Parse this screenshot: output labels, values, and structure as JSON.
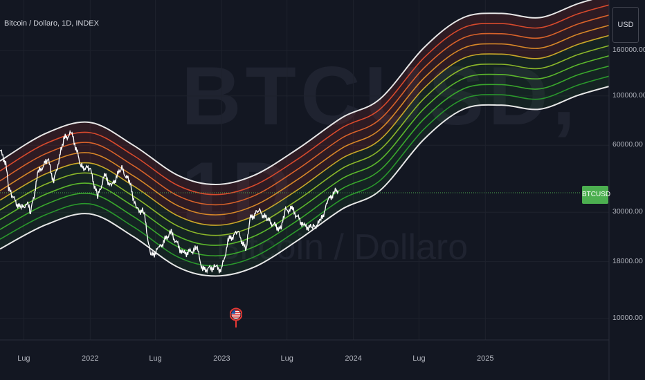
{
  "header": {
    "symbol_title": "Bitcoin / Dollaro, 1D, INDEX"
  },
  "watermark": {
    "ticker": "BTCUSD, 1D",
    "name": "Bitcoin / Dollaro"
  },
  "currency_button": {
    "label": "USD"
  },
  "price_tag": {
    "label": "BTCUSD",
    "color": "#4caf50"
  },
  "event_marker": {
    "icon": "us-flag-icon"
  },
  "colors": {
    "background": "#131722",
    "band_colors": [
      "#e8e8e8",
      "#d84a2c",
      "#d8622a",
      "#d88828",
      "#c8a828",
      "#8cb82a",
      "#5cb82c",
      "#3aa82c",
      "#2a982c",
      "#e8e8e8"
    ],
    "price_line": "#ffffff"
  },
  "chart_data": {
    "type": "line",
    "y_scale": "log",
    "ylim": [
      8000,
      270000
    ],
    "y_ticks": [
      {
        "value": 160000,
        "label": "160000.00"
      },
      {
        "value": 100000,
        "label": "100000.00"
      },
      {
        "value": 60000,
        "label": "60000.00"
      },
      {
        "value": 30000,
        "label": "30000.00"
      },
      {
        "value": 18000,
        "label": "18000.00"
      },
      {
        "value": 10000,
        "label": "10000.00"
      }
    ],
    "xlim": [
      "2021-04-26",
      "2025-12-10"
    ],
    "x_ticks": [
      {
        "date": "2021-07-01",
        "label": "Lug"
      },
      {
        "date": "2022-01-01",
        "label": "2022"
      },
      {
        "date": "2022-07-01",
        "label": "Lug"
      },
      {
        "date": "2023-01-01",
        "label": "2023"
      },
      {
        "date": "2023-07-01",
        "label": "Lug"
      },
      {
        "date": "2024-01-01",
        "label": "2024"
      },
      {
        "date": "2024-07-01",
        "label": "Lug"
      },
      {
        "date": "2025-01-01",
        "label": "2025"
      }
    ],
    "last_price": 37500,
    "bands": [
      {
        "date": "2021-04-26",
        "values": [
          51000,
          46000,
          41500,
          37500,
          34000,
          30700,
          27800,
          25100,
          22700,
          20500
        ]
      },
      {
        "date": "2021-09-01",
        "values": [
          68000,
          61200,
          55100,
          49600,
          44700,
          40200,
          36200,
          32600,
          29300,
          26400
        ]
      },
      {
        "date": "2022-01-01",
        "values": [
          76000,
          68400,
          61600,
          55400,
          49900,
          44900,
          40400,
          36400,
          32700,
          29500
        ]
      },
      {
        "date": "2022-05-01",
        "values": [
          60000,
          54000,
          48600,
          43700,
          39400,
          35400,
          31900,
          28700,
          25800,
          23300
        ]
      },
      {
        "date": "2022-09-01",
        "values": [
          44000,
          39600,
          35600,
          32100,
          28900,
          26000,
          23400,
          21000,
          18900,
          17000
        ]
      },
      {
        "date": "2022-12-15",
        "values": [
          40000,
          36000,
          32400,
          29200,
          26200,
          23600,
          21300,
          19100,
          17200,
          15500
        ]
      },
      {
        "date": "2023-04-01",
        "values": [
          44000,
          39600,
          35600,
          32100,
          28900,
          26000,
          23400,
          21000,
          18900,
          17000
        ]
      },
      {
        "date": "2023-08-01",
        "values": [
          58000,
          52200,
          47000,
          42300,
          38000,
          34200,
          30800,
          27700,
          25000,
          22500
        ]
      },
      {
        "date": "2023-12-01",
        "values": [
          80000,
          72000,
          64800,
          58300,
          52500,
          47200,
          42500,
          38300,
          34400,
          31000
        ]
      },
      {
        "date": "2024-03-15",
        "values": [
          97000,
          87300,
          78600,
          70700,
          63600,
          57300,
          51500,
          46400,
          41700,
          37600
        ]
      },
      {
        "date": "2024-07-15",
        "values": [
          165000,
          148500,
          133700,
          120300,
          108300,
          97400,
          87700,
          78900,
          71000,
          63900
        ]
      },
      {
        "date": "2024-11-01",
        "values": [
          225000,
          202500,
          182300,
          164000,
          147600,
          132900,
          119600,
          107600,
          96900,
          87200
        ]
      },
      {
        "date": "2025-02-15",
        "values": [
          235000,
          211500,
          190400,
          171300,
          154200,
          138800,
          124900,
          112400,
          101200,
          91000
        ]
      },
      {
        "date": "2025-06-01",
        "values": [
          225000,
          202500,
          182300,
          164000,
          147600,
          132900,
          119600,
          107600,
          96900,
          87200
        ]
      },
      {
        "date": "2025-09-15",
        "values": [
          260000,
          234000,
          210600,
          189500,
          170600,
          153500,
          138200,
          124400,
          111900,
          100700
        ]
      },
      {
        "date": "2025-12-10",
        "values": [
          285000,
          256500,
          230900,
          207800,
          187000,
          168300,
          151500,
          136300,
          122700,
          110400
        ]
      }
    ],
    "series": [
      {
        "values": [
          [
            "2021-04-26",
            57000
          ],
          [
            "2021-05-12",
            50000
          ],
          [
            "2021-05-20",
            38000
          ],
          [
            "2021-06-01",
            35000
          ],
          [
            "2021-06-22",
            31000
          ],
          [
            "2021-07-10",
            33000
          ],
          [
            "2021-07-20",
            29800
          ],
          [
            "2021-08-10",
            45000
          ],
          [
            "2021-09-06",
            52000
          ],
          [
            "2021-09-22",
            41000
          ],
          [
            "2021-10-20",
            64000
          ],
          [
            "2021-11-10",
            68000
          ],
          [
            "2021-11-25",
            57000
          ],
          [
            "2021-12-05",
            48000
          ],
          [
            "2022-01-01",
            47000
          ],
          [
            "2022-01-22",
            35000
          ],
          [
            "2022-02-10",
            44000
          ],
          [
            "2022-03-01",
            39000
          ],
          [
            "2022-03-28",
            47500
          ],
          [
            "2022-04-20",
            41000
          ],
          [
            "2022-05-09",
            31000
          ],
          [
            "2022-05-30",
            30000
          ],
          [
            "2022-06-18",
            19000
          ],
          [
            "2022-07-10",
            20500
          ],
          [
            "2022-08-12",
            24500
          ],
          [
            "2022-09-15",
            19500
          ],
          [
            "2022-10-25",
            20500
          ],
          [
            "2022-11-09",
            16500
          ],
          [
            "2022-12-15",
            17000
          ],
          [
            "2022-12-31",
            16500
          ],
          [
            "2023-01-20",
            22500
          ],
          [
            "2023-02-15",
            24500
          ],
          [
            "2023-03-10",
            20000
          ],
          [
            "2023-03-20",
            28000
          ],
          [
            "2023-04-14",
            30500
          ],
          [
            "2023-05-10",
            27500
          ],
          [
            "2023-06-15",
            25000
          ],
          [
            "2023-06-25",
            30500
          ],
          [
            "2023-07-15",
            31000
          ],
          [
            "2023-08-17",
            26000
          ],
          [
            "2023-09-10",
            25500
          ],
          [
            "2023-10-01",
            27000
          ],
          [
            "2023-10-24",
            34000
          ],
          [
            "2023-11-10",
            37000
          ],
          [
            "2023-11-20",
            37500
          ]
        ]
      }
    ]
  }
}
